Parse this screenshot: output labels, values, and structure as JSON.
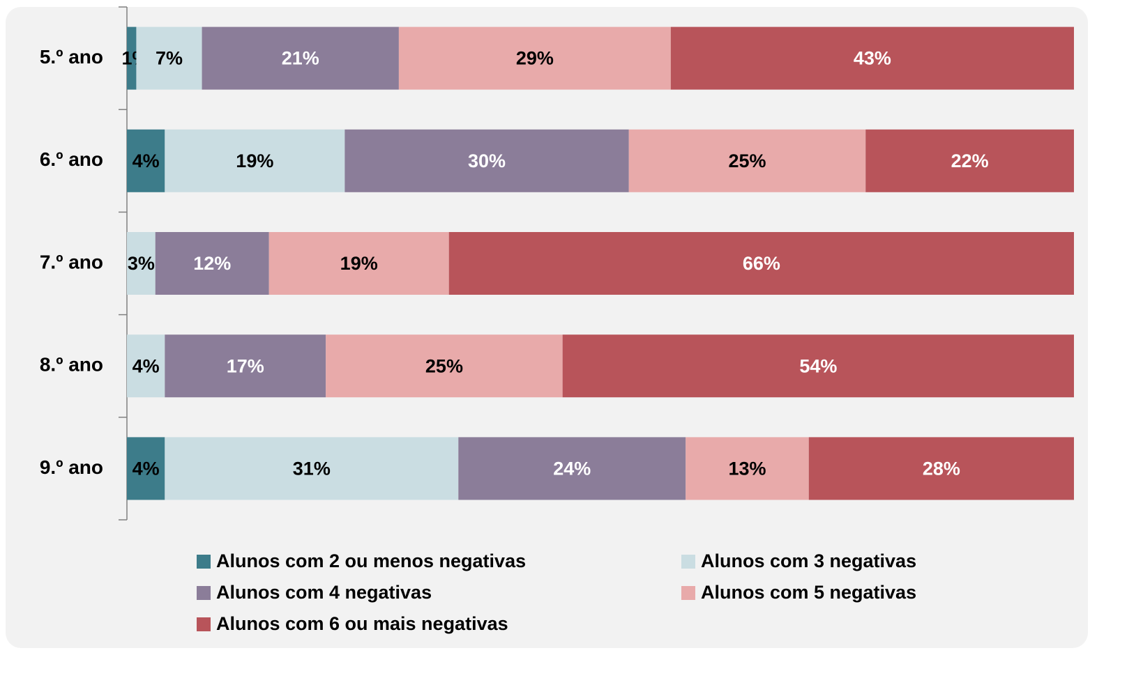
{
  "chart_data": {
    "type": "stacked-bar-horizontal",
    "categories": [
      "5.º ano",
      "6.º ano",
      "7.º ano",
      "8.º ano",
      "9.º ano"
    ],
    "series": [
      {
        "name": "Alunos com 2 ou menos negativas",
        "color": "#3d7c8a",
        "label_color": "#000000",
        "values": [
          1,
          4,
          null,
          null,
          4
        ],
        "value_labels": [
          "1%",
          "4%",
          null,
          null,
          "4%"
        ]
      },
      {
        "name": "Alunos com 3 negativas",
        "color": "#cadde2",
        "label_color": "#000000",
        "values": [
          7,
          19,
          3,
          4,
          31
        ],
        "value_labels": [
          "7%",
          "19%",
          "3%",
          "4%",
          "31%"
        ]
      },
      {
        "name": "Alunos com 4 negativas",
        "color": "#8b7d99",
        "label_color": "#ffffff",
        "values": [
          21,
          30,
          12,
          17,
          24
        ],
        "value_labels": [
          "21%",
          "30%",
          "12%",
          "17%",
          "24%"
        ]
      },
      {
        "name": "Alunos com 5 negativas",
        "color": "#e8aaaa",
        "label_color": "#000000",
        "values": [
          29,
          25,
          19,
          25,
          13
        ],
        "value_labels": [
          "29%",
          "25%",
          "19%",
          "25%",
          "13%"
        ]
      },
      {
        "name": "Alunos com 6 ou mais negativas",
        "color": "#b8545a",
        "label_color": "#ffffff",
        "values": [
          43,
          22,
          66,
          54,
          28
        ],
        "value_labels": [
          "43%",
          "22%",
          "66%",
          "54%",
          "28%"
        ]
      }
    ]
  }
}
